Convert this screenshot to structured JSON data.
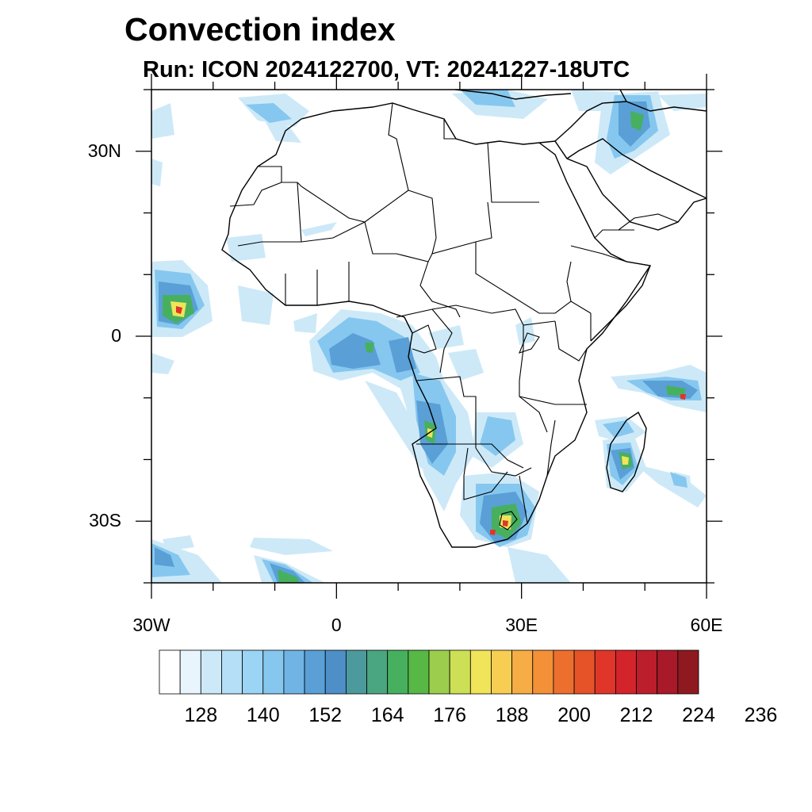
{
  "title": "Convection index",
  "subtitle": "Run: ICON 2024122700,  VT: 20241227-18UTC",
  "map": {
    "lon_range": [
      -30,
      60
    ],
    "lat_range": [
      -40,
      40
    ],
    "x_ticks": [
      {
        "value": -30,
        "label": "30W"
      },
      {
        "value": 0,
        "label": "0"
      },
      {
        "value": 30,
        "label": "30E"
      },
      {
        "value": 60,
        "label": "60E"
      }
    ],
    "y_ticks": [
      {
        "value": 30,
        "label": "30N"
      },
      {
        "value": 0,
        "label": "0"
      },
      {
        "value": -30,
        "label": "30S"
      }
    ],
    "minor_lon_step": 10,
    "minor_lat_step": 10
  },
  "colorbar": {
    "colors": [
      "#ffffff",
      "#e9f5fd",
      "#cde9f8",
      "#b4dff7",
      "#9bd4f5",
      "#86c7ef",
      "#6fb4e4",
      "#5a9fd6",
      "#4e8fc8",
      "#4c9a9e",
      "#4aa680",
      "#47b05f",
      "#57b845",
      "#9ccd4c",
      "#cde055",
      "#efe45a",
      "#f7cd52",
      "#f6ad46",
      "#f39038",
      "#ed6f2e",
      "#e65328",
      "#df3629",
      "#d3242b",
      "#bd1e2b",
      "#a8192a",
      "#8e1a1f"
    ],
    "labels": [
      {
        "index": 2,
        "text": "128"
      },
      {
        "index": 5,
        "text": "140"
      },
      {
        "index": 8,
        "text": "152"
      },
      {
        "index": 11,
        "text": "164"
      },
      {
        "index": 14,
        "text": "176"
      },
      {
        "index": 17,
        "text": "188"
      },
      {
        "index": 20,
        "text": "200"
      },
      {
        "index": 23,
        "text": "212"
      },
      {
        "index": 26,
        "text": "224"
      },
      {
        "index": 29,
        "text": "236"
      }
    ]
  }
}
